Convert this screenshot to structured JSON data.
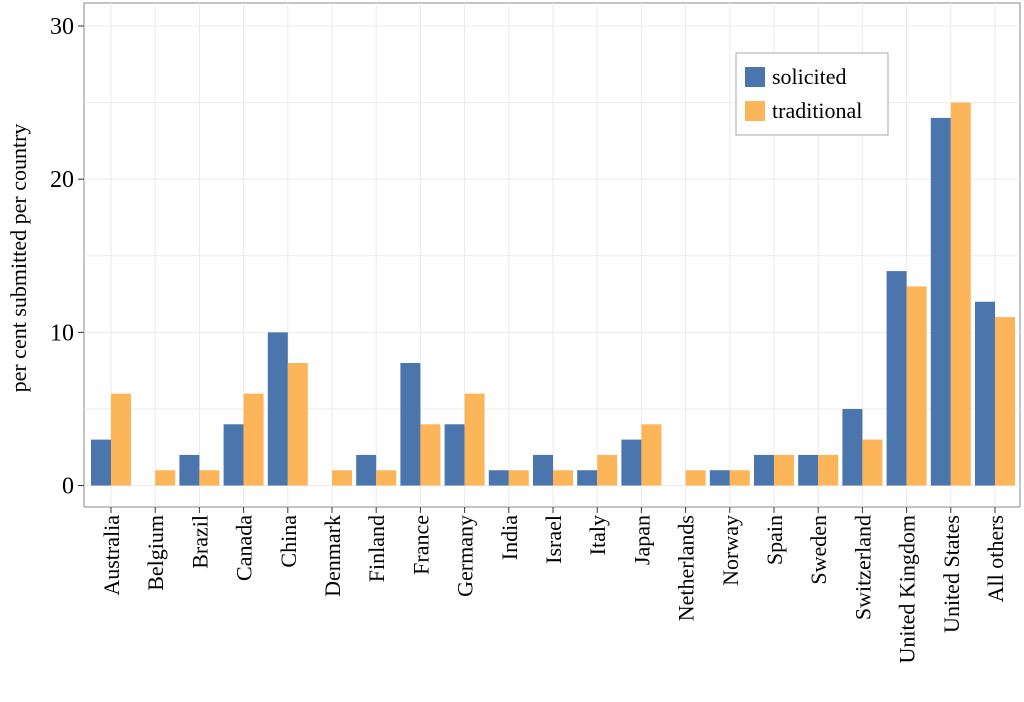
{
  "chart_data": {
    "type": "bar",
    "title": "",
    "xlabel": "",
    "ylabel": "per cent submitted per country",
    "ylim": [
      -1.4,
      31.5
    ],
    "yticks": [
      0,
      10,
      20,
      30
    ],
    "grid": true,
    "legend_position": "top-right",
    "categories": [
      "Australia",
      "Belgium",
      "Brazil",
      "Canada",
      "China",
      "Denmark",
      "Finland",
      "France",
      "Germany",
      "India",
      "Israel",
      "Italy",
      "Japan",
      "Netherlands",
      "Norway",
      "Spain",
      "Sweden",
      "Switzerland",
      "United Kingdom",
      "United States",
      "All others"
    ],
    "series": [
      {
        "name": "solicited",
        "color": "#4a75ad",
        "values": [
          3,
          0,
          2,
          4,
          10,
          0,
          2,
          8,
          4,
          1,
          2,
          1,
          3,
          0,
          1,
          2,
          2,
          5,
          14,
          24,
          12
        ]
      },
      {
        "name": "traditional",
        "color": "#fdb55a",
        "values": [
          6,
          1,
          1,
          6,
          8,
          1,
          1,
          4,
          6,
          1,
          1,
          2,
          4,
          1,
          1,
          2,
          2,
          3,
          13,
          25,
          11
        ]
      }
    ]
  }
}
